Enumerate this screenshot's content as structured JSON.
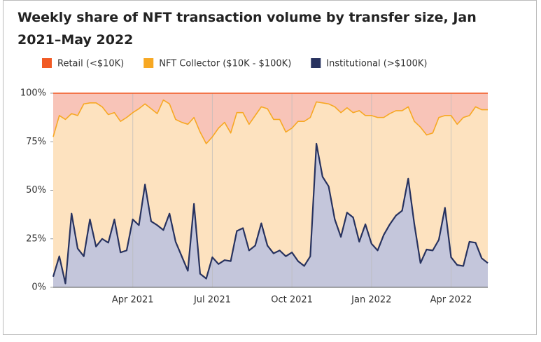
{
  "chart_data": {
    "type": "stacked_area",
    "title": "Weekly share of NFT transaction volume by transfer size, Jan 2021–May 2022",
    "categories": [
      null,
      null,
      null,
      null,
      null,
      null,
      null,
      null,
      null,
      null,
      null,
      null,
      null,
      "Apr 2021",
      null,
      null,
      null,
      null,
      null,
      null,
      null,
      null,
      null,
      null,
      null,
      null,
      "Jul 2021",
      null,
      null,
      null,
      null,
      null,
      null,
      null,
      null,
      null,
      null,
      null,
      null,
      "Oct 2021",
      null,
      null,
      null,
      null,
      null,
      null,
      null,
      null,
      null,
      null,
      null,
      null,
      "Jan 2022",
      null,
      null,
      null,
      null,
      null,
      null,
      null,
      null,
      null,
      null,
      null,
      null,
      "Apr 2022",
      null,
      null,
      null,
      null,
      null,
      null
    ],
    "series": [
      {
        "name": "Retail (<$10K)",
        "color": "#f15a24",
        "fill": "#f8c4b8",
        "values": [
          22.5,
          11.5,
          13.5,
          10.5,
          11.5,
          5.5,
          5,
          5,
          7,
          11,
          10,
          14.5,
          12.5,
          10,
          8,
          5.5,
          8,
          10.5,
          3.5,
          5.5,
          13.5,
          15,
          16,
          12.5,
          20,
          26,
          22.5,
          18,
          15,
          20.5,
          10,
          10,
          16,
          11.5,
          7,
          8,
          13.5,
          13.5,
          20,
          18,
          14.5,
          14.5,
          12.5,
          4.5,
          5,
          5.5,
          7,
          10,
          7.5,
          10,
          9,
          11.5,
          11.5,
          12.5,
          12.5,
          10.5,
          9,
          9,
          7,
          14.5,
          17.5,
          21.5,
          20.5,
          12.5,
          11.5,
          11.5,
          16,
          12.5,
          11.5,
          7,
          8.5,
          8.5
        ]
      },
      {
        "name": "NFT Collector ($10K - $100K)",
        "color": "#f7a823",
        "fill": "#fde2bf",
        "values": [
          72,
          72.5,
          84.5,
          51.5,
          68.5,
          78.5,
          60,
          74,
          68,
          66,
          55,
          67.5,
          68.5,
          55,
          60,
          41.5,
          58,
          57.5,
          67,
          56.5,
          63,
          69,
          75.5,
          44.5,
          73,
          69.5,
          62,
          70,
          71,
          66,
          61,
          59.5,
          65,
          67,
          60,
          70.5,
          69,
          67.5,
          64,
          64,
          72,
          74.5,
          71.5,
          21.5,
          38,
          42.5,
          58,
          64,
          54,
          54,
          67.5,
          56,
          66,
          68.5,
          60.5,
          57,
          54,
          51.5,
          37,
          53,
          70,
          59,
          60.5,
          63,
          47.5,
          73,
          72.5,
          76.5,
          65,
          70,
          76.5,
          79
        ]
      },
      {
        "name": "Institutional (>$100K)",
        "color": "#27325f",
        "fill": "#c4c6db",
        "values": [
          5.5,
          16,
          2,
          38,
          20,
          16,
          35,
          21,
          25,
          23,
          35,
          18,
          19,
          35,
          32,
          53,
          34,
          32,
          29.5,
          38,
          23.5,
          16,
          8.5,
          43,
          7,
          4.5,
          15.5,
          12,
          14,
          13.5,
          29,
          30.5,
          19,
          21.5,
          33,
          21.5,
          17.5,
          19,
          16,
          18,
          13.5,
          11,
          16,
          74,
          57,
          52,
          35,
          26,
          38.5,
          36,
          23.5,
          32.5,
          22.5,
          19,
          27,
          32.5,
          37,
          39.5,
          56,
          32.5,
          12.5,
          19.5,
          19,
          24.5,
          41,
          15.5,
          11.5,
          11,
          23.5,
          23,
          15,
          12.5
        ]
      }
    ],
    "ylim": [
      0,
      100
    ],
    "yticks": [
      {
        "value": 0,
        "label": "0%"
      },
      {
        "value": 25,
        "label": "25%"
      },
      {
        "value": 50,
        "label": "50%"
      },
      {
        "value": 75,
        "label": "75%"
      },
      {
        "value": 100,
        "label": "100%"
      }
    ],
    "x_grid": true
  }
}
